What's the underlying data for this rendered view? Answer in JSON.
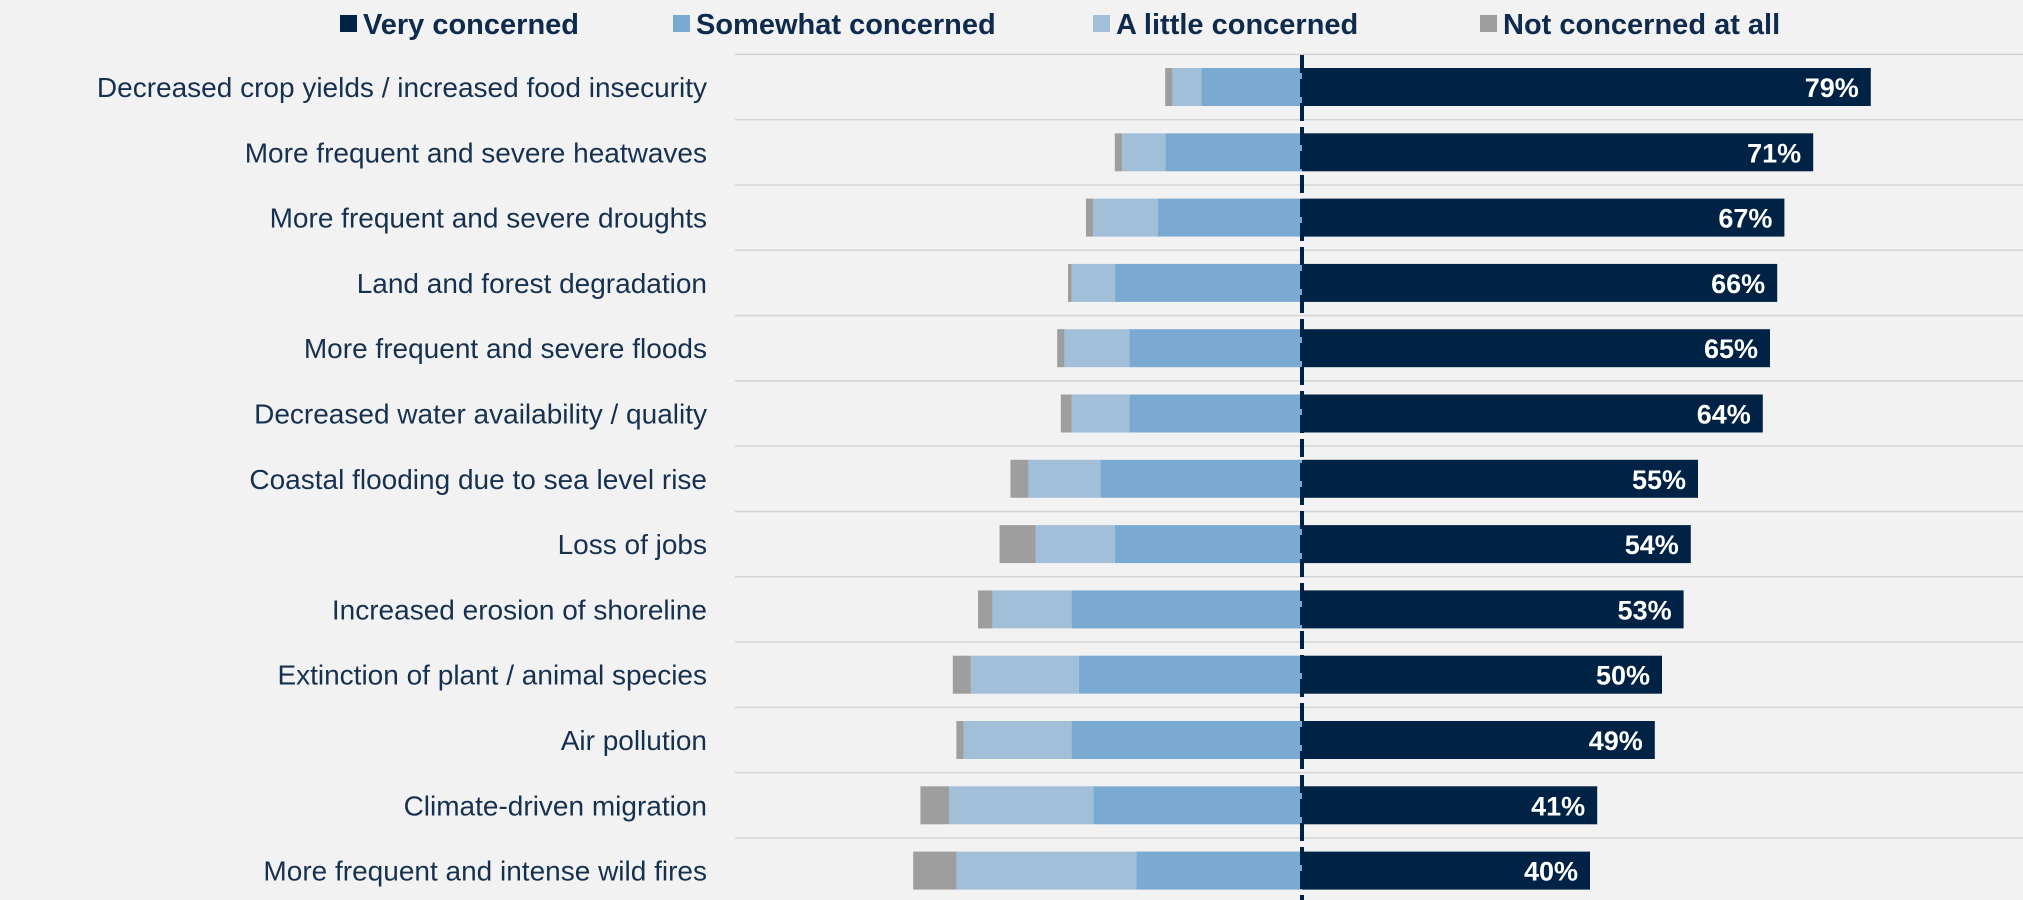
{
  "chart_data": {
    "type": "bar",
    "orientation": "horizontal",
    "layout": "diverging-stacked",
    "legend_position": "top",
    "grid": true,
    "title": "",
    "categories": [
      "Decreased crop yields / increased food insecurity",
      "More frequent and severe heatwaves",
      "More frequent and severe droughts",
      "Land and forest degradation",
      "More frequent and severe floods",
      "Decreased water availability / quality",
      "Coastal flooding due to sea level rise",
      "Loss of jobs",
      "Increased erosion of shoreline",
      "Extinction of plant / animal species",
      "Air pollution",
      "Climate-driven migration",
      "More frequent and intense wild fires"
    ],
    "series": [
      {
        "name": "Very concerned",
        "color": "#002244",
        "values": [
          79,
          71,
          67,
          66,
          65,
          64,
          55,
          54,
          53,
          50,
          49,
          41,
          40
        ],
        "value_labels": [
          "79%",
          "71%",
          "67%",
          "66%",
          "65%",
          "64%",
          "55%",
          "54%",
          "53%",
          "50%",
          "49%",
          "41%",
          "40%"
        ]
      },
      {
        "name": "Somewhat concerned",
        "color": "#7aaad2",
        "values": [
          14,
          19,
          20,
          26,
          24,
          24,
          28,
          26,
          32,
          31,
          32,
          29,
          23
        ]
      },
      {
        "name": "A little concerned",
        "color": "#a2bfda",
        "values": [
          4,
          6,
          9,
          6,
          9,
          8,
          10,
          11,
          11,
          15,
          15,
          20,
          25
        ]
      },
      {
        "name": "Not concerned at all",
        "color": "#9e9e9e",
        "values": [
          1,
          1,
          1,
          0.5,
          1,
          1.5,
          2.5,
          5,
          2,
          2.5,
          1,
          4,
          6
        ]
      }
    ]
  }
}
